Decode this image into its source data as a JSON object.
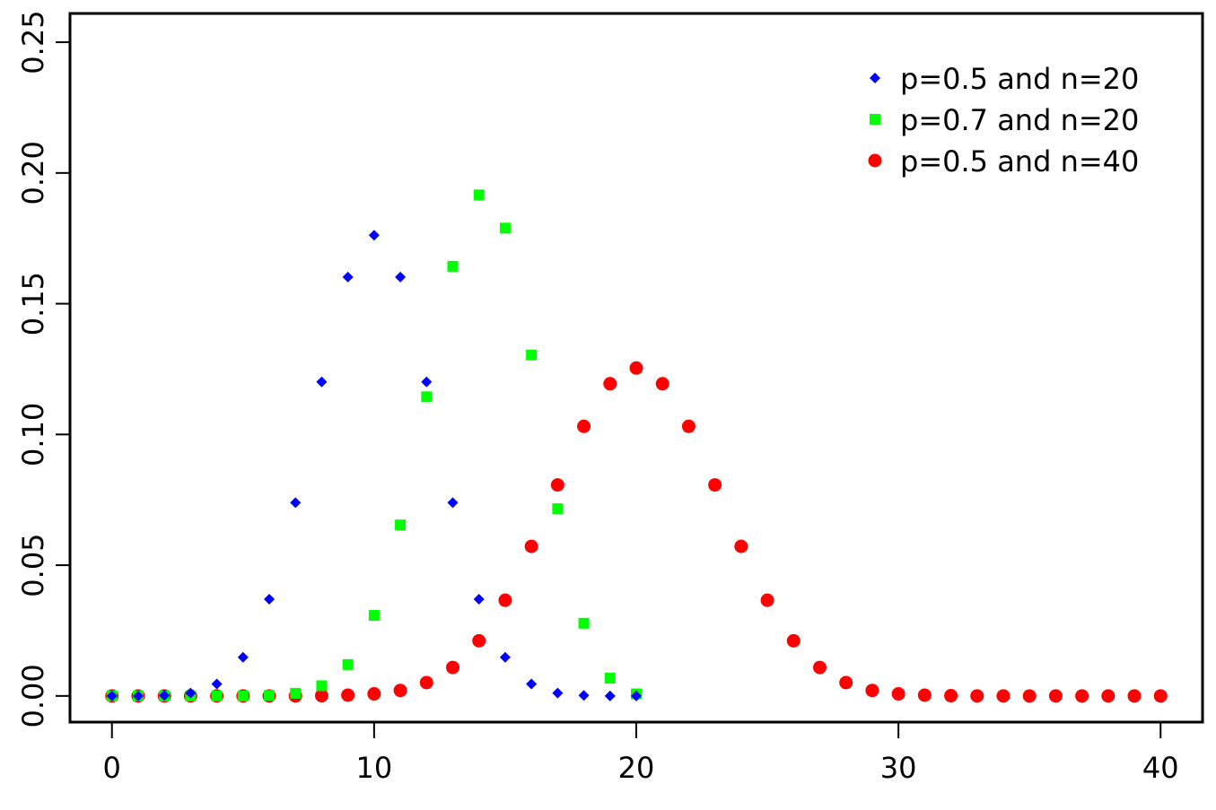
{
  "chart_data": {
    "type": "scatter",
    "title": "",
    "xlabel": "",
    "ylabel": "",
    "xlim": [
      -1.6,
      41.6
    ],
    "ylim": [
      -0.01,
      0.261
    ],
    "x_ticks": [
      {
        "value": 0,
        "label": "0"
      },
      {
        "value": 10,
        "label": "10"
      },
      {
        "value": 20,
        "label": "20"
      },
      {
        "value": 30,
        "label": "30"
      },
      {
        "value": 40,
        "label": "40"
      }
    ],
    "y_ticks": [
      {
        "value": 0.0,
        "label": "0.00"
      },
      {
        "value": 0.05,
        "label": "0.05"
      },
      {
        "value": 0.1,
        "label": "0.10"
      },
      {
        "value": 0.15,
        "label": "0.15"
      },
      {
        "value": 0.2,
        "label": "0.20"
      },
      {
        "value": 0.25,
        "label": "0.25"
      }
    ],
    "grid": false,
    "legend_position": "top-right",
    "series": [
      {
        "name": "p=0.5 and n=20",
        "marker": "diamond",
        "color": "#0000ff",
        "x": [
          0,
          1,
          2,
          3,
          4,
          5,
          6,
          7,
          8,
          9,
          10,
          11,
          12,
          13,
          14,
          15,
          16,
          17,
          18,
          19,
          20
        ],
        "y": [
          0.0,
          0.0,
          0.0002,
          0.0011,
          0.0046,
          0.0148,
          0.037,
          0.0739,
          0.1201,
          0.1602,
          0.1762,
          0.1602,
          0.1201,
          0.0739,
          0.037,
          0.0148,
          0.0046,
          0.0011,
          0.0002,
          0.0,
          0.0
        ]
      },
      {
        "name": "p=0.7 and n=20",
        "marker": "square",
        "color": "#00ff00",
        "x": [
          0,
          1,
          2,
          3,
          4,
          5,
          6,
          7,
          8,
          9,
          10,
          11,
          12,
          13,
          14,
          15,
          16,
          17,
          18,
          19,
          20
        ],
        "y": [
          0.0,
          0.0,
          0.0,
          0.0,
          0.0,
          0.0,
          0.0002,
          0.001,
          0.0039,
          0.012,
          0.0308,
          0.0654,
          0.1144,
          0.1643,
          0.1916,
          0.1789,
          0.1304,
          0.0716,
          0.0278,
          0.0068,
          0.0008
        ]
      },
      {
        "name": "p=0.5 and n=40",
        "marker": "circle",
        "color": "#ff0000",
        "x": [
          0,
          1,
          2,
          3,
          4,
          5,
          6,
          7,
          8,
          9,
          10,
          11,
          12,
          13,
          14,
          15,
          16,
          17,
          18,
          19,
          20,
          21,
          22,
          23,
          24,
          25,
          26,
          27,
          28,
          29,
          30,
          31,
          32,
          33,
          34,
          35,
          36,
          37,
          38,
          39,
          40
        ],
        "y": [
          0.0,
          0.0,
          0.0,
          0.0,
          0.0,
          0.0,
          0.0,
          0.0,
          0.0001,
          0.0003,
          0.0008,
          0.0021,
          0.0051,
          0.0109,
          0.0211,
          0.0366,
          0.0572,
          0.0807,
          0.1031,
          0.1194,
          0.1254,
          0.1194,
          0.1031,
          0.0807,
          0.0572,
          0.0366,
          0.0211,
          0.0109,
          0.0051,
          0.0021,
          0.0008,
          0.0003,
          0.0001,
          0.0,
          0.0,
          0.0,
          0.0,
          0.0,
          0.0,
          0.0,
          0.0
        ]
      }
    ]
  }
}
